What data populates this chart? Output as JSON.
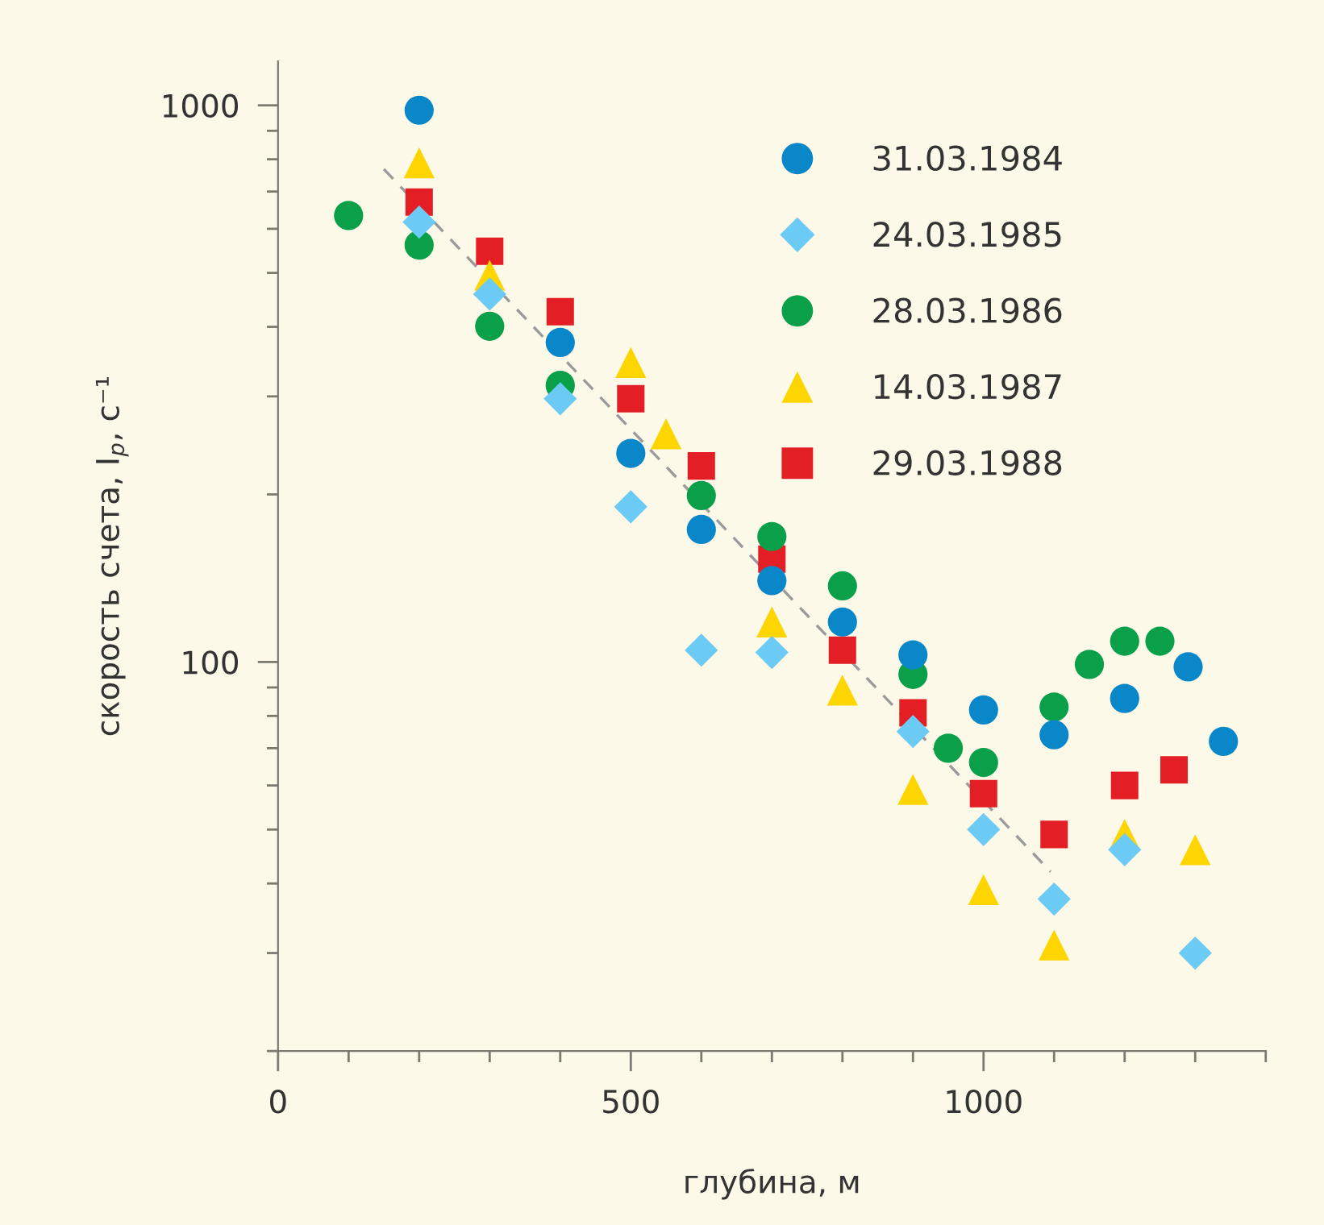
{
  "chart_data": {
    "type": "scatter",
    "xlabel": "глубина, м",
    "ylabel": "скорость счета, I$_{р}$, с⁻¹",
    "log": "y",
    "xlim": [
      0,
      1400
    ],
    "ylim": [
      20,
      1200
    ],
    "xticks": [
      0,
      {
        "value": 100,
        "label": null
      },
      {
        "value": 200,
        "label": null
      },
      {
        "value": 300,
        "label": null
      },
      {
        "value": 400,
        "label": null
      },
      500,
      {
        "value": 600,
        "label": null
      },
      {
        "value": 700,
        "label": null
      },
      {
        "value": 800,
        "label": null
      },
      {
        "value": 900,
        "label": null
      },
      1000,
      {
        "value": 1100,
        "label": null
      },
      {
        "value": 1200,
        "label": null
      },
      {
        "value": 1300,
        "label": null
      },
      {
        "value": 1400,
        "label": null
      }
    ],
    "yticks": [
      {
        "value": 20,
        "label": null
      },
      {
        "value": 30,
        "label": null
      },
      {
        "value": 40,
        "label": null
      },
      {
        "value": 50,
        "label": null
      },
      {
        "value": 60,
        "label": null
      },
      {
        "value": 70,
        "label": null
      },
      {
        "value": 80,
        "label": null
      },
      {
        "value": 90,
        "label": null
      },
      100,
      {
        "value": 200,
        "label": null
      },
      {
        "value": 300,
        "label": null
      },
      {
        "value": 400,
        "label": null
      },
      {
        "value": 500,
        "label": null
      },
      {
        "value": 600,
        "label": null
      },
      {
        "value": 700,
        "label": null
      },
      {
        "value": 800,
        "label": null
      },
      {
        "value": 900,
        "label": null
      },
      1000
    ],
    "grid": false,
    "legend": "top right",
    "series": [
      {
        "name": "31.03.1984",
        "color": "#0a87c8",
        "marker": "circle",
        "x": [
          200,
          400,
          500,
          600,
          700,
          800,
          900,
          1000,
          1100,
          1200,
          1290,
          1340
        ],
        "values": [
          980,
          375,
          237,
          173,
          140,
          118,
          103,
          82,
          74,
          86,
          98,
          72
        ]
      },
      {
        "name": "24.03.1985",
        "color": "#6ccbf5",
        "marker": "diamond",
        "x": [
          200,
          300,
          400,
          500,
          600,
          700,
          900,
          1000,
          1100,
          1200,
          1300
        ],
        "values": [
          617,
          458,
          297,
          190,
          105,
          104,
          75,
          50,
          37.5,
          46,
          30
        ]
      },
      {
        "name": "28.03.1986",
        "color": "#0aa04a",
        "marker": "circle",
        "x": [
          100,
          200,
          300,
          400,
          600,
          700,
          800,
          900,
          950,
          1000,
          1100,
          1150,
          1200,
          1250
        ],
        "values": [
          634,
          561,
          401,
          314,
          199,
          168,
          137,
          95,
          70,
          66,
          83,
          99,
          109,
          109
        ]
      },
      {
        "name": "14.03.1987",
        "color": "#ffd500",
        "marker": "triangle",
        "x": [
          200,
          300,
          500,
          550,
          700,
          800,
          900,
          1000,
          1100,
          1200,
          1300
        ],
        "values": [
          788,
          495,
          345,
          257,
          118,
          89,
          59,
          39,
          31,
          49,
          46
        ]
      },
      {
        "name": "29.03.1988",
        "color": "#e31e24",
        "marker": "square",
        "x": [
          200,
          300,
          400,
          500,
          600,
          700,
          800,
          900,
          1000,
          1100,
          1200,
          1270
        ],
        "values": [
          670,
          547,
          426,
          297,
          225,
          153,
          105,
          81,
          58,
          49,
          60,
          64
        ]
      },
      {
        "type": "line",
        "color": "#9a9a9a",
        "line_style": "dashed",
        "marker": "none",
        "x": [
          150,
          1095
        ],
        "values": [
          768,
          42
        ]
      }
    ]
  }
}
